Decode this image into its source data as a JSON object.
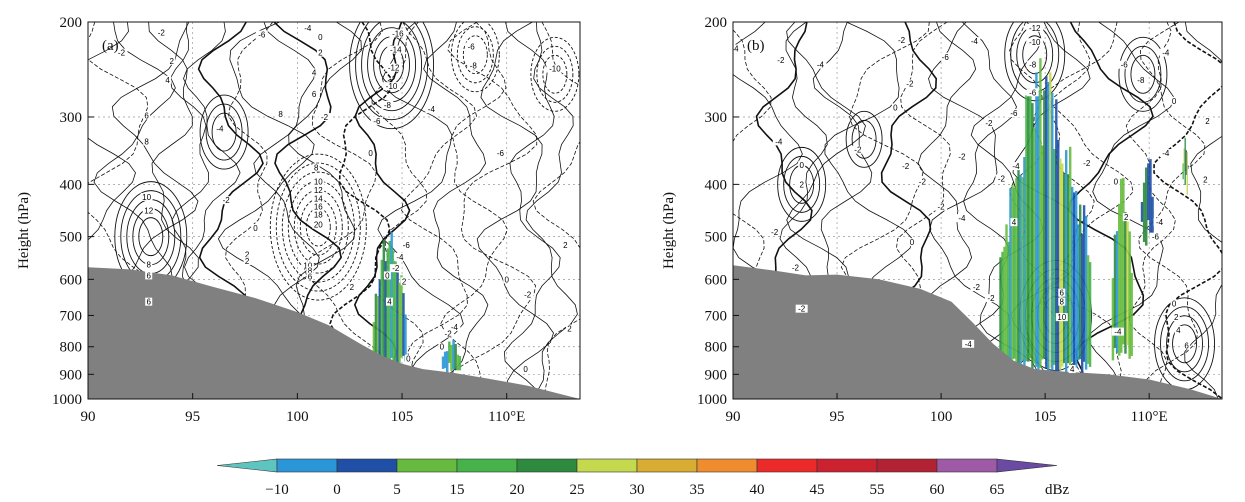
{
  "chart_data": [
    {
      "panel_label": "(a)",
      "type": "contour",
      "ylabel": "Height  (hPa)",
      "x_ticks": [
        "90",
        "95",
        "100",
        "105",
        "110°E"
      ],
      "x_tick_values": [
        90,
        95,
        100,
        105,
        110
      ],
      "y_ticks": [
        "200",
        "300",
        "400",
        "500",
        "600",
        "700",
        "800",
        "900",
        "1000"
      ],
      "y_tick_values": [
        200,
        300,
        400,
        500,
        600,
        700,
        800,
        900,
        1000
      ],
      "xlim": [
        90,
        113.5
      ],
      "ylim": [
        1000,
        200
      ],
      "y_scale": "log",
      "grid": true,
      "terrain": [
        [
          90,
          570
        ],
        [
          92,
          575
        ],
        [
          94,
          590
        ],
        [
          96,
          620
        ],
        [
          98,
          650
        ],
        [
          100,
          690
        ],
        [
          101.5,
          730
        ],
        [
          103,
          790
        ],
        [
          104,
          830
        ],
        [
          105,
          860
        ],
        [
          106,
          880
        ],
        [
          107.5,
          895
        ],
        [
          109,
          915
        ],
        [
          111,
          945
        ],
        [
          113.5,
          1000
        ]
      ],
      "contour_labels": [
        {
          "lon": 91.6,
          "p": 228,
          "text": "-2"
        },
        {
          "lon": 93.5,
          "p": 209,
          "text": "-2"
        },
        {
          "lon": 94.0,
          "p": 236,
          "text": "2"
        },
        {
          "lon": 93.8,
          "p": 256,
          "text": "4"
        },
        {
          "lon": 92.8,
          "p": 298,
          "text": "6"
        },
        {
          "lon": 92.8,
          "p": 333,
          "text": "8"
        },
        {
          "lon": 92.8,
          "p": 422,
          "text": "10"
        },
        {
          "lon": 92.9,
          "p": 447,
          "text": "12"
        },
        {
          "lon": 92.9,
          "p": 563,
          "text": "8"
        },
        {
          "lon": 92.9,
          "p": 590,
          "text": "6"
        },
        {
          "lon": 92.9,
          "p": 660,
          "text": "6"
        },
        {
          "lon": 96.3,
          "p": 315,
          "text": "-4"
        },
        {
          "lon": 96.6,
          "p": 428,
          "text": "-2"
        },
        {
          "lon": 98.0,
          "p": 482,
          "text": "0"
        },
        {
          "lon": 97.6,
          "p": 540,
          "text": "2"
        },
        {
          "lon": 97.6,
          "p": 555,
          "text": "2"
        },
        {
          "lon": 98.3,
          "p": 211,
          "text": "-6"
        },
        {
          "lon": 100.5,
          "p": 205,
          "text": "-4"
        },
        {
          "lon": 101.1,
          "p": 213,
          "text": "0"
        },
        {
          "lon": 101.1,
          "p": 228,
          "text": "2"
        },
        {
          "lon": 100.8,
          "p": 248,
          "text": "4"
        },
        {
          "lon": 100.8,
          "p": 272,
          "text": "6"
        },
        {
          "lon": 99.2,
          "p": 296,
          "text": "8"
        },
        {
          "lon": 100.9,
          "p": 372,
          "text": "8"
        },
        {
          "lon": 101.0,
          "p": 395,
          "text": "10"
        },
        {
          "lon": 101.0,
          "p": 410,
          "text": "12"
        },
        {
          "lon": 101.0,
          "p": 425,
          "text": "14"
        },
        {
          "lon": 101.0,
          "p": 440,
          "text": "16"
        },
        {
          "lon": 101.0,
          "p": 455,
          "text": "18"
        },
        {
          "lon": 101.0,
          "p": 475,
          "text": "20"
        },
        {
          "lon": 100.5,
          "p": 565,
          "text": "10"
        },
        {
          "lon": 100.6,
          "p": 578,
          "text": "8"
        },
        {
          "lon": 100.6,
          "p": 593,
          "text": "6"
        },
        {
          "lon": 102.6,
          "p": 620,
          "text": "2"
        },
        {
          "lon": 103.5,
          "p": 350,
          "text": "0"
        },
        {
          "lon": 101.3,
          "p": 300,
          "text": "-2"
        },
        {
          "lon": 104.8,
          "p": 210,
          "text": "-16"
        },
        {
          "lon": 104.7,
          "p": 225,
          "text": "-14"
        },
        {
          "lon": 104.6,
          "p": 243,
          "text": "-12"
        },
        {
          "lon": 104.5,
          "p": 263,
          "text": "-10"
        },
        {
          "lon": 104.3,
          "p": 285,
          "text": "-8"
        },
        {
          "lon": 103.8,
          "p": 305,
          "text": "-6"
        },
        {
          "lon": 106.4,
          "p": 290,
          "text": "-4"
        },
        {
          "lon": 108.3,
          "p": 222,
          "text": "-6"
        },
        {
          "lon": 108.4,
          "p": 241,
          "text": "-8"
        },
        {
          "lon": 112.3,
          "p": 244,
          "text": "-10"
        },
        {
          "lon": 109.7,
          "p": 350,
          "text": "-6"
        },
        {
          "lon": 105.2,
          "p": 518,
          "text": "-6"
        },
        {
          "lon": 104.9,
          "p": 545,
          "text": "-4"
        },
        {
          "lon": 104.7,
          "p": 572,
          "text": "-2"
        },
        {
          "lon": 104.3,
          "p": 590,
          "text": "0"
        },
        {
          "lon": 105.1,
          "p": 605,
          "text": "2"
        },
        {
          "lon": 104.4,
          "p": 660,
          "text": "4"
        },
        {
          "lon": 107.5,
          "p": 735,
          "text": "-4"
        },
        {
          "lon": 107.2,
          "p": 756,
          "text": "-2"
        },
        {
          "lon": 106.9,
          "p": 800,
          "text": "0"
        },
        {
          "lon": 105.3,
          "p": 842,
          "text": "0"
        },
        {
          "lon": 111.0,
          "p": 640,
          "text": "-2"
        },
        {
          "lon": 110.0,
          "p": 600,
          "text": "0"
        },
        {
          "lon": 112.8,
          "p": 518,
          "text": "2"
        },
        {
          "lon": 113.0,
          "p": 740,
          "text": "2"
        },
        {
          "lon": 110.9,
          "p": 880,
          "text": "0"
        }
      ]
    },
    {
      "panel_label": "(b)",
      "type": "contour",
      "ylabel": "Height  (hPa)",
      "x_ticks": [
        "90",
        "95",
        "100",
        "105",
        "110°E"
      ],
      "x_tick_values": [
        90,
        95,
        100,
        105,
        110
      ],
      "y_ticks": [
        "200",
        "300",
        "400",
        "500",
        "600",
        "700",
        "800",
        "900",
        "1000"
      ],
      "y_tick_values": [
        200,
        300,
        400,
        500,
        600,
        700,
        800,
        900,
        1000
      ],
      "xlim": [
        90,
        113.5
      ],
      "ylim": [
        1000,
        200
      ],
      "y_scale": "log",
      "grid": true,
      "terrain": [
        [
          90,
          565
        ],
        [
          92,
          578
        ],
        [
          93.5,
          590
        ],
        [
          95,
          588
        ],
        [
          97,
          600
        ],
        [
          99,
          625
        ],
        [
          100.5,
          660
        ],
        [
          101.5,
          720
        ],
        [
          102.5,
          790
        ],
        [
          103.5,
          850
        ],
        [
          104.5,
          880
        ],
        [
          106,
          890
        ],
        [
          108,
          900
        ],
        [
          110,
          920
        ],
        [
          112,
          960
        ],
        [
          113.5,
          1000
        ]
      ],
      "contour_labels": [
        {
          "lon": 90.1,
          "p": 224,
          "text": "-4"
        },
        {
          "lon": 92.3,
          "p": 235,
          "text": "-2"
        },
        {
          "lon": 94.2,
          "p": 240,
          "text": "-4"
        },
        {
          "lon": 98.1,
          "p": 216,
          "text": "-2"
        },
        {
          "lon": 101.6,
          "p": 217,
          "text": "-4"
        },
        {
          "lon": 98.5,
          "p": 260,
          "text": "-2"
        },
        {
          "lon": 100.2,
          "p": 232,
          "text": "-6"
        },
        {
          "lon": 97.8,
          "p": 288,
          "text": "0"
        },
        {
          "lon": 92.2,
          "p": 333,
          "text": "-4"
        },
        {
          "lon": 96.0,
          "p": 345,
          "text": "-2"
        },
        {
          "lon": 93.3,
          "p": 368,
          "text": "0"
        },
        {
          "lon": 93.3,
          "p": 400,
          "text": "2"
        },
        {
          "lon": 101.0,
          "p": 355,
          "text": "-2"
        },
        {
          "lon": 103.5,
          "p": 295,
          "text": "-6"
        },
        {
          "lon": 102.3,
          "p": 308,
          "text": "-2"
        },
        {
          "lon": 104.5,
          "p": 205,
          "text": "-12"
        },
        {
          "lon": 104.5,
          "p": 218,
          "text": "-10"
        },
        {
          "lon": 104.4,
          "p": 240,
          "text": "-8"
        },
        {
          "lon": 104.4,
          "p": 270,
          "text": "-6"
        },
        {
          "lon": 103.6,
          "p": 370,
          "text": "-4"
        },
        {
          "lon": 102.9,
          "p": 390,
          "text": "-2"
        },
        {
          "lon": 98.3,
          "p": 370,
          "text": "-2"
        },
        {
          "lon": 99.1,
          "p": 395,
          "text": "-2"
        },
        {
          "lon": 100.0,
          "p": 440,
          "text": "-2"
        },
        {
          "lon": 101.0,
          "p": 462,
          "text": "-4"
        },
        {
          "lon": 92.0,
          "p": 490,
          "text": "-2"
        },
        {
          "lon": 98.6,
          "p": 512,
          "text": "0"
        },
        {
          "lon": 103.5,
          "p": 470,
          "text": "4"
        },
        {
          "lon": 107.0,
          "p": 365,
          "text": "-2"
        },
        {
          "lon": 109.6,
          "p": 256,
          "text": "-8"
        },
        {
          "lon": 108.8,
          "p": 240,
          "text": "-6"
        },
        {
          "lon": 110.8,
          "p": 228,
          "text": "-4"
        },
        {
          "lon": 111.2,
          "p": 280,
          "text": "0"
        },
        {
          "lon": 112.8,
          "p": 305,
          "text": "2"
        },
        {
          "lon": 112.7,
          "p": 392,
          "text": "2"
        },
        {
          "lon": 110.5,
          "p": 470,
          "text": "-4"
        },
        {
          "lon": 110.3,
          "p": 500,
          "text": "-6"
        },
        {
          "lon": 108.9,
          "p": 460,
          "text": "2"
        },
        {
          "lon": 108.4,
          "p": 395,
          "text": "0"
        },
        {
          "lon": 110.8,
          "p": 350,
          "text": "-4"
        },
        {
          "lon": 93.0,
          "p": 570,
          "text": "-2"
        },
        {
          "lon": 93.3,
          "p": 680,
          "text": "-2"
        },
        {
          "lon": 101.7,
          "p": 620,
          "text": "-2"
        },
        {
          "lon": 102.4,
          "p": 650,
          "text": "-2"
        },
        {
          "lon": 101.3,
          "p": 790,
          "text": "-4"
        },
        {
          "lon": 105.8,
          "p": 635,
          "text": "6"
        },
        {
          "lon": 105.8,
          "p": 660,
          "text": "8"
        },
        {
          "lon": 105.8,
          "p": 705,
          "text": "10"
        },
        {
          "lon": 106.3,
          "p": 880,
          "text": "4"
        },
        {
          "lon": 108.5,
          "p": 750,
          "text": "-4"
        },
        {
          "lon": 111.2,
          "p": 665,
          "text": "0"
        },
        {
          "lon": 111.3,
          "p": 705,
          "text": "2"
        },
        {
          "lon": 111.4,
          "p": 745,
          "text": "4"
        },
        {
          "lon": 111.8,
          "p": 795,
          "text": "6"
        }
      ]
    }
  ],
  "colorbar": {
    "unit": "dBz",
    "tick_labels": [
      "−10",
      "0",
      "5",
      "15",
      "20",
      "25",
      "30",
      "35",
      "40",
      "45",
      "55",
      "60",
      "65"
    ],
    "colors": [
      "#5ec4c0",
      "#2a96d8",
      "#1f4fa6",
      "#66bb3e",
      "#45b34a",
      "#2d8a3e",
      "#c4d94e",
      "#d9ad32",
      "#ef8d2e",
      "#ec2a2a",
      "#cc2230",
      "#b22232",
      "#9e5aa6",
      "#6a4aa2"
    ]
  }
}
